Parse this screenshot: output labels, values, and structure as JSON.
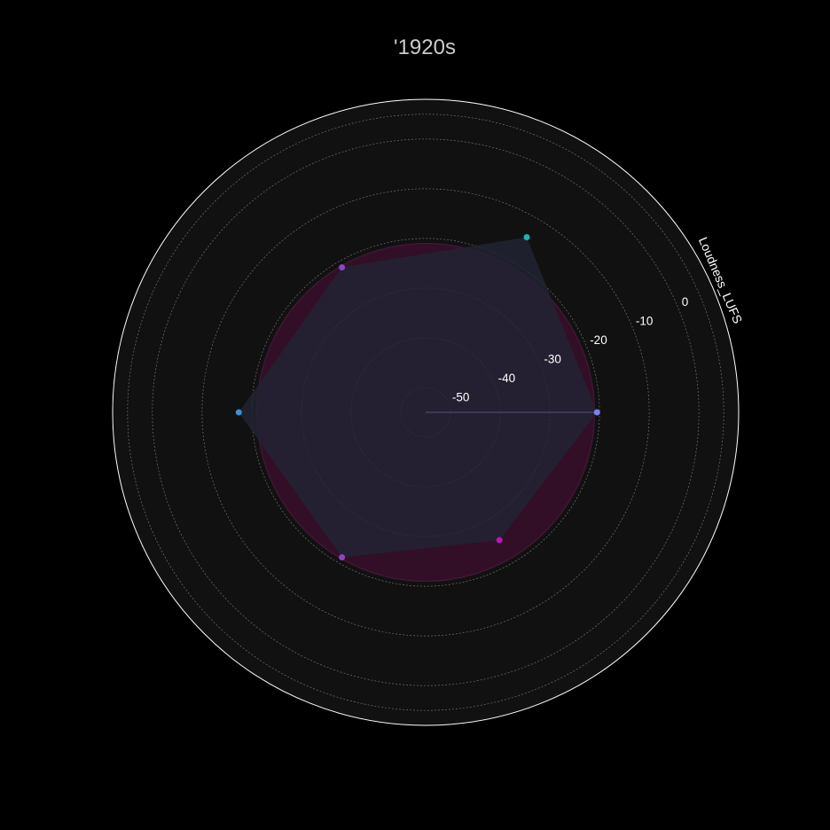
{
  "chart_data": {
    "type": "radar",
    "title": "'1920s",
    "radial_axis_label": "Loudness_LUFS",
    "radial_range": [
      -55,
      8
    ],
    "radial_ticks": [
      -50,
      -40,
      -30,
      -20,
      -10,
      0
    ],
    "radial_tick_labels": [
      "-50",
      "-40",
      "-30",
      "-20",
      "-10",
      "0"
    ],
    "angular_unit": "degrees",
    "grid": true,
    "series": [
      {
        "points": [
          {
            "theta": 0,
            "r": -20.5
          },
          {
            "theta": 60,
            "r": -14.3
          },
          {
            "theta": 120,
            "r": -21.3
          },
          {
            "theta": 180,
            "r": -17.4
          },
          {
            "theta": 240,
            "r": -21.3
          },
          {
            "theta": 300,
            "r": -25.3
          }
        ],
        "marker_colors": [
          "#7b83eb",
          "#1ab3b3",
          "#8e44c4",
          "#3d8fd6",
          "#8e44c4",
          "#b41ab4"
        ],
        "fill_color": "#2a2238",
        "line_color": "#4a3c66"
      }
    ],
    "reference_band": {
      "r": -21,
      "color": "#3a0f2c"
    },
    "background_color": "#111111",
    "page_color": "#000000"
  }
}
